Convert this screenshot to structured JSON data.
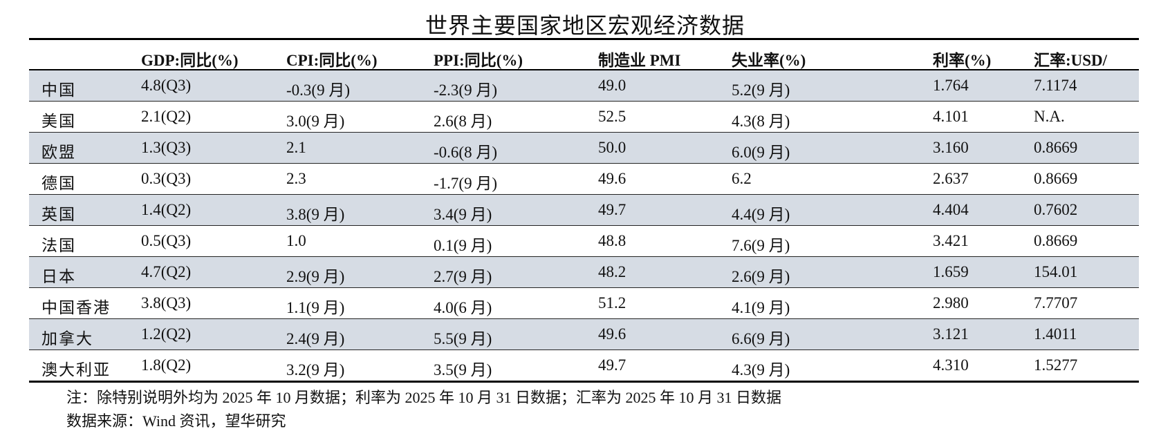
{
  "title": "世界主要国家地区宏观经济数据",
  "headers": [
    "",
    "GDP:同比(%)",
    "CPI:同比(%)",
    "PPI:同比(%)",
    "制造业 PMI",
    "失业率(%)",
    "利率(%)",
    "汇率:USD/"
  ],
  "rows": [
    [
      "中国",
      "4.8(Q3)",
      "-0.3(9 月)",
      "-2.3(9 月)",
      "49.0",
      "5.2(9 月)",
      "1.764",
      "7.1174"
    ],
    [
      "美国",
      "2.1(Q2)",
      "3.0(9 月)",
      "2.6(8 月)",
      "52.5",
      "4.3(8 月)",
      "4.101",
      "N.A."
    ],
    [
      "欧盟",
      "1.3(Q3)",
      "2.1",
      "-0.6(8 月)",
      "50.0",
      "6.0(9 月)",
      "3.160",
      "0.8669"
    ],
    [
      "德国",
      "0.3(Q3)",
      "2.3",
      "-1.7(9 月)",
      "49.6",
      "6.2",
      "2.637",
      "0.8669"
    ],
    [
      "英国",
      "1.4(Q2)",
      "3.8(9 月)",
      "3.4(9 月)",
      "49.7",
      "4.4(9 月)",
      "4.404",
      "0.7602"
    ],
    [
      "法国",
      "0.5(Q3)",
      "1.0",
      "0.1(9 月)",
      "48.8",
      "7.6(9 月)",
      "3.421",
      "0.8669"
    ],
    [
      "日本",
      "4.7(Q2)",
      "2.9(9 月)",
      "2.7(9 月)",
      "48.2",
      "2.6(9 月)",
      "1.659",
      "154.01"
    ],
    [
      "中国香港",
      "3.8(Q3)",
      "1.1(9 月)",
      "4.0(6 月)",
      "51.2",
      "4.1(9 月)",
      "2.980",
      "7.7707"
    ],
    [
      "加拿大",
      "1.2(Q2)",
      "2.4(9 月)",
      "5.5(9 月)",
      "49.6",
      "6.6(9 月)",
      "3.121",
      "1.4011"
    ],
    [
      "澳大利亚",
      "1.8(Q2)",
      "3.2(9 月)",
      "3.5(9 月)",
      "49.7",
      "4.3(9 月)",
      "4.310",
      "1.5277"
    ]
  ],
  "note": "注：除特别说明外均为 2025 年 10 月数据；利率为 2025 年 10 月 31 日数据；汇率为 2025 年 10 月 31 日数据",
  "source": "数据来源：Wind 资讯，望华研究",
  "colors": {
    "shade": "#d6dce4",
    "rule": "#000000"
  }
}
